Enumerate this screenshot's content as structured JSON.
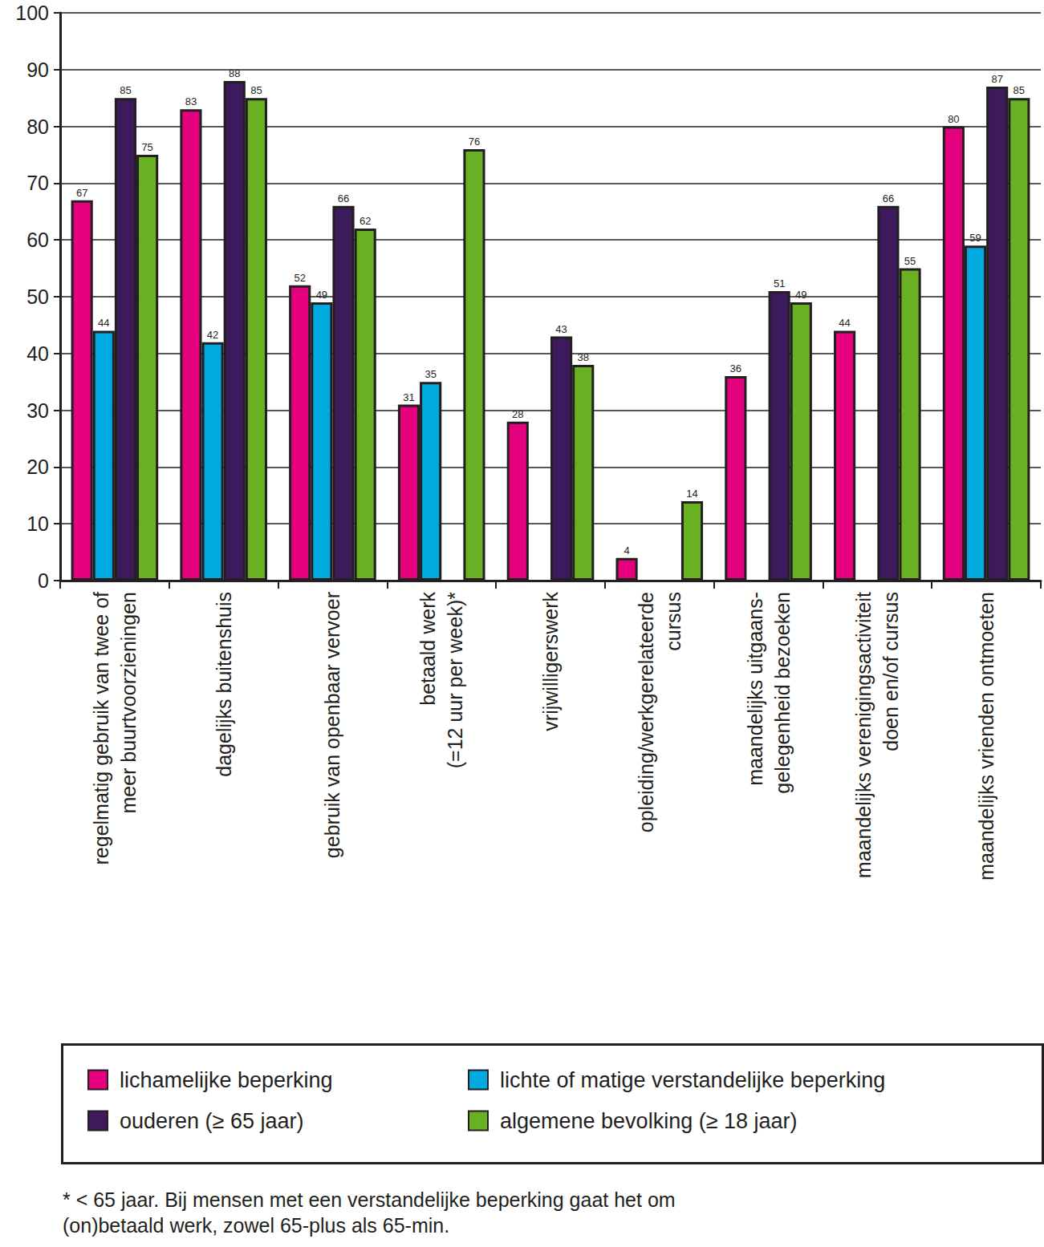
{
  "chart_data": {
    "type": "bar",
    "categories": [
      "regelmatig gebruik van twee of\nmeer buurtvoorzieningen",
      "dagelijks buitenshuis",
      "gebruik van openbaar vervoer",
      "betaald werk\n(=12 uur per week)*",
      "vrijwilligerswerk",
      "opleiding/werkgerelateerde\ncursus",
      "maandelijks uitgaans-\ngelegenheid bezoeken",
      "maandelijks verenigingsactiviteit\ndoen en/of cursus",
      "maandelijks vrienden ontmoeten"
    ],
    "series": [
      {
        "name": "lichamelijke beperking",
        "color": "#e5007e",
        "values": [
          67,
          83,
          52,
          31,
          28,
          4,
          36,
          44,
          80
        ]
      },
      {
        "name": "lichte of matige verstandelijke beperking",
        "color": "#00a9e0",
        "values": [
          44,
          42,
          49,
          35,
          null,
          null,
          null,
          null,
          59
        ]
      },
      {
        "name": "ouderen (≥ 65 jaar)",
        "color": "#3d1a5b",
        "values": [
          85,
          88,
          66,
          null,
          43,
          null,
          51,
          66,
          87
        ]
      },
      {
        "name": "algemene bevolking (≥ 18 jaar)",
        "color": "#6ab023",
        "values": [
          75,
          85,
          62,
          76,
          38,
          14,
          49,
          55,
          85
        ]
      }
    ],
    "ylim": [
      0,
      100
    ],
    "yticks": [
      0,
      10,
      20,
      30,
      40,
      50,
      60,
      70,
      80,
      90,
      100
    ],
    "grid": true,
    "legend": "bottom",
    "data_labels": true,
    "footnote": "* < 65 jaar. Bij mensen met een verstandelijke beperking gaat het om\n(on)betaald werk, zowel 65-plus als 65-min."
  }
}
